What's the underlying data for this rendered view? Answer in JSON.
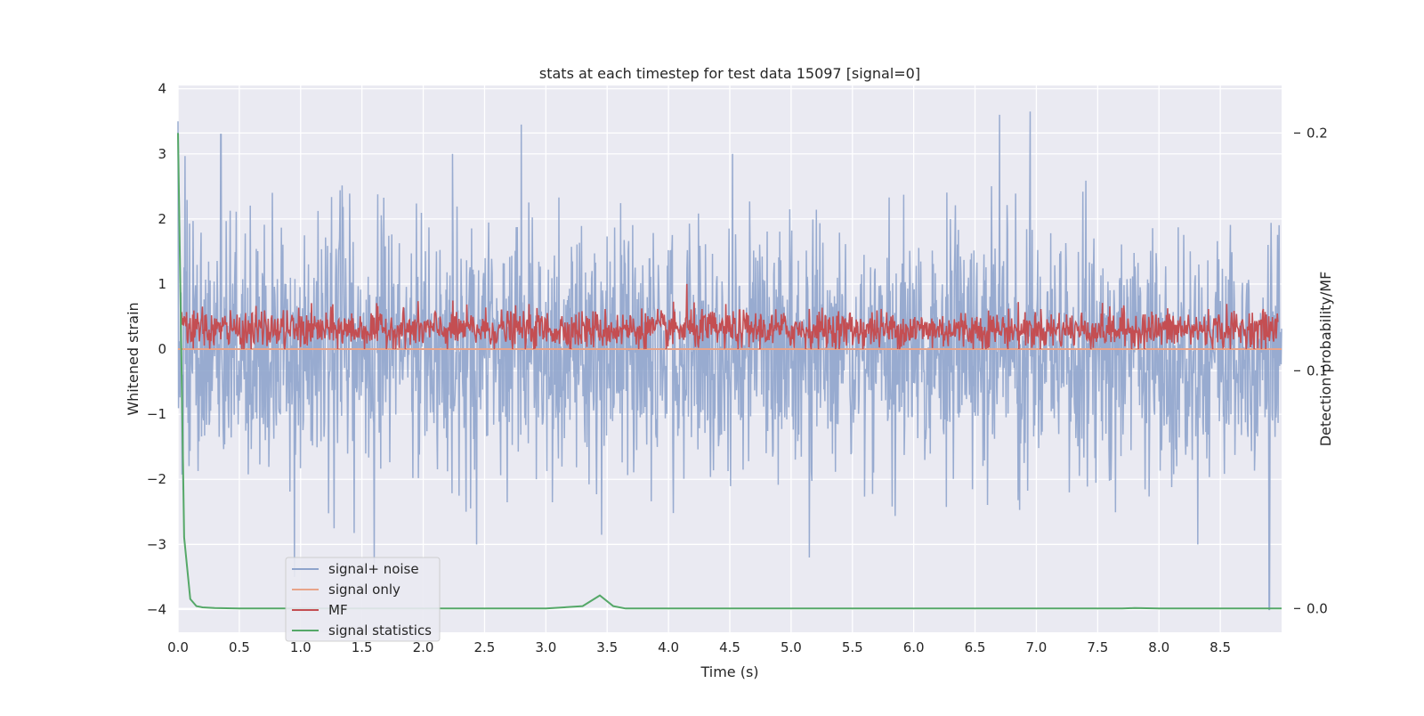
{
  "chart_data": {
    "type": "line",
    "title": "stats at each timestep for test data 15097 [signal=0]",
    "xlabel": "Time (s)",
    "ylabel": "Whitened strain",
    "y2label": "Detection probability/MF",
    "xlim": [
      0.0,
      9.0
    ],
    "ylim": [
      -4.35,
      4.05
    ],
    "y2lim": [
      -0.01,
      0.22
    ],
    "xticks": [
      "0.0",
      "0.5",
      "1.0",
      "1.5",
      "2.0",
      "2.5",
      "3.0",
      "3.5",
      "4.0",
      "4.5",
      "5.0",
      "5.5",
      "6.0",
      "6.5",
      "7.0",
      "7.5",
      "8.0",
      "8.5"
    ],
    "yticks": [
      "4",
      "3",
      "2",
      "1",
      "0",
      "−1",
      "−2",
      "−3",
      "−4"
    ],
    "y2ticks": [
      "0.2",
      "0.1",
      "0.0"
    ],
    "grid": true,
    "legend_position": "lower-left",
    "series": [
      {
        "name": "signal+ noise",
        "axis": "left",
        "color": "#8fa4cc",
        "description_points": [
          [
            0.0,
            3.5
          ],
          [
            0.35,
            3.3
          ],
          [
            0.95,
            -3.5
          ],
          [
            1.6,
            -3.3
          ],
          [
            2.8,
            3.45
          ],
          [
            5.15,
            -3.2
          ],
          [
            6.7,
            3.6
          ],
          [
            6.95,
            3.65
          ],
          [
            8.9,
            -4.0
          ]
        ]
      },
      {
        "name": "signal only",
        "axis": "left",
        "color": "#e8a48a",
        "x": [
          0.0,
          9.0
        ],
        "values": [
          0.0,
          0.0
        ]
      },
      {
        "name": "MF",
        "axis": "left",
        "color": "#c44e52",
        "mean": 0.3,
        "range": [
          0.0,
          1.0
        ]
      },
      {
        "name": "signal statistics",
        "axis": "right",
        "color": "#55a868",
        "x": [
          0.0,
          0.05,
          0.1,
          0.15,
          0.2,
          0.3,
          0.5,
          1.0,
          2.0,
          3.0,
          3.3,
          3.44,
          3.55,
          3.65,
          4.0,
          5.0,
          6.0,
          7.0,
          7.7,
          7.8,
          8.0,
          9.0
        ],
        "values": [
          0.2,
          0.03,
          0.004,
          0.001,
          0.0005,
          0.0002,
          0.0,
          0.0,
          0.0,
          0.0,
          0.001,
          0.0055,
          0.001,
          0.0,
          0.0,
          0.0,
          0.0,
          0.0,
          0.0,
          0.0002,
          0.0,
          0.0
        ]
      }
    ]
  }
}
